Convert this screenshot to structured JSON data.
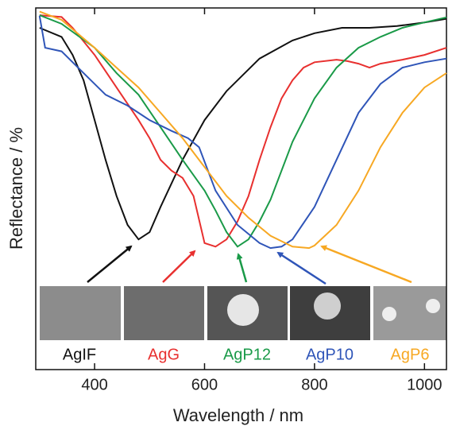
{
  "chart_data": {
    "type": "line",
    "xlabel": "Wavelength / nm",
    "ylabel": "Reflectance / %",
    "xlim": [
      293,
      1040
    ],
    "ylim": [
      0,
      100
    ],
    "xticks": [
      400,
      600,
      800,
      1000
    ],
    "series": [
      {
        "name": "AgIF",
        "color": "#111111",
        "x": [
          300,
          340,
          360,
          380,
          400,
          420,
          440,
          460,
          480,
          500,
          520,
          560,
          600,
          640,
          700,
          760,
          800,
          850,
          900,
          950,
          1000,
          1040
        ],
        "values": [
          94.5,
          92,
          87,
          80,
          69,
          58,
          48,
          40,
          36,
          38,
          45,
          58,
          69,
          77,
          86,
          91,
          93,
          94.5,
          94.5,
          95,
          96,
          97
        ]
      },
      {
        "name": "AgG",
        "color": "#e8302f",
        "x": [
          300,
          340,
          360,
          400,
          440,
          480,
          500,
          520,
          540,
          560,
          580,
          600,
          620,
          640,
          660,
          680,
          700,
          720,
          740,
          760,
          780,
          800,
          840,
          860,
          880,
          900,
          920,
          960,
          1000,
          1040
        ],
        "values": [
          98,
          97.5,
          94.5,
          87,
          78,
          69,
          64,
          58,
          55,
          53,
          48,
          35,
          34,
          36,
          41,
          48,
          58,
          67,
          75,
          80,
          83.5,
          85,
          85.7,
          85.3,
          84.6,
          83.5,
          84.6,
          85.7,
          87,
          89
        ]
      },
      {
        "name": "AgP12",
        "color": "#1a9a48",
        "x": [
          300,
          340,
          400,
          440,
          480,
          520,
          560,
          600,
          620,
          640,
          660,
          680,
          700,
          720,
          760,
          800,
          840,
          880,
          920,
          960,
          1000,
          1040
        ],
        "values": [
          98,
          95.6,
          89,
          82,
          76,
          67,
          58,
          49.5,
          44,
          38,
          34,
          36,
          41,
          47,
          63,
          75,
          83.5,
          89,
          92,
          94.5,
          96,
          97.4
        ]
      },
      {
        "name": "AgP10",
        "color": "#2f55b8",
        "x": [
          300,
          310,
          340,
          380,
          420,
          460,
          500,
          540,
          570,
          590,
          620,
          660,
          700,
          720,
          740,
          760,
          800,
          840,
          880,
          920,
          960,
          1000,
          1040
        ],
        "values": [
          97.8,
          89,
          88,
          82,
          76,
          73,
          69,
          66,
          64,
          61.5,
          49.5,
          40,
          35,
          33.6,
          34,
          36,
          45,
          58,
          71,
          79,
          83.5,
          85,
          86
        ]
      },
      {
        "name": "AgP6",
        "color": "#f7a823",
        "x": [
          300,
          340,
          400,
          440,
          480,
          520,
          560,
          600,
          640,
          680,
          720,
          760,
          790,
          800,
          840,
          880,
          920,
          960,
          1000,
          1040
        ],
        "values": [
          99,
          96.7,
          89,
          83.5,
          78,
          71,
          64,
          56,
          48,
          42,
          37,
          34,
          33.6,
          34.3,
          40,
          49.5,
          61.5,
          71,
          78,
          82
        ]
      }
    ]
  }
}
